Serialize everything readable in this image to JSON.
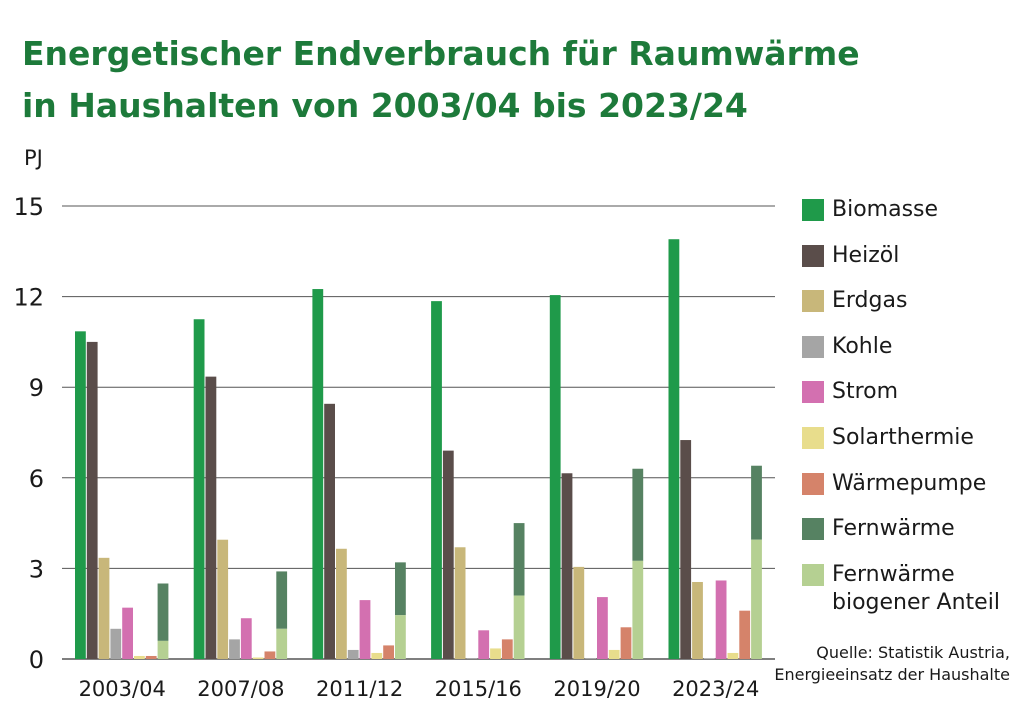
{
  "title": {
    "line1": "Energetischer Endverbrauch für Raumwärme",
    "line2": "in Haushalten von 2003/04 bis 2023/24"
  },
  "source": {
    "line1": "Quelle: Statistik Austria,",
    "line2": "Energieeinsatz der Haushalte"
  },
  "chart_data": {
    "type": "bar",
    "ylabel": "PJ",
    "ylim": [
      0,
      15
    ],
    "yticks": [
      0,
      3,
      6,
      9,
      12,
      15
    ],
    "grid": true,
    "legend_position": "right",
    "categories": [
      "2003/04",
      "2007/08",
      "2011/12",
      "2015/16",
      "2019/20",
      "2023/24"
    ],
    "series": [
      {
        "name": "Biomasse",
        "color": "#1f9a4a",
        "values": [
          10.85,
          11.25,
          12.25,
          11.85,
          12.05,
          13.9
        ]
      },
      {
        "name": "Heizöl",
        "color": "#5a4d4a",
        "values": [
          10.5,
          9.35,
          8.45,
          6.9,
          6.15,
          7.25
        ]
      },
      {
        "name": "Erdgas",
        "color": "#c8b77a",
        "values": [
          3.35,
          3.95,
          3.65,
          3.7,
          3.05,
          2.55
        ]
      },
      {
        "name": "Kohle",
        "color": "#a5a5a5",
        "values": [
          1.0,
          0.65,
          0.3,
          0.03,
          0.03,
          0.02
        ]
      },
      {
        "name": "Strom",
        "color": "#d370b0",
        "values": [
          1.7,
          1.35,
          1.95,
          0.95,
          2.05,
          2.6
        ]
      },
      {
        "name": "Solarthermie",
        "color": "#e8dd8c",
        "values": [
          0.1,
          0.05,
          0.2,
          0.35,
          0.3,
          0.2
        ]
      },
      {
        "name": "Wärmepumpe",
        "color": "#d5836a",
        "values": [
          0.1,
          0.25,
          0.45,
          0.65,
          1.05,
          1.6
        ]
      }
    ],
    "stacked_series": {
      "base": {
        "name": "Fernwärme biogener Anteil",
        "label_lines": [
          "Fernwärme",
          "biogener Anteil"
        ],
        "color": "#b5d092",
        "values": [
          0.6,
          1.0,
          1.45,
          2.1,
          3.25,
          3.95
        ]
      },
      "total": {
        "name": "Fernwärme",
        "color": "#568262",
        "values": [
          2.5,
          2.9,
          3.2,
          4.5,
          6.3,
          6.4
        ]
      }
    }
  }
}
